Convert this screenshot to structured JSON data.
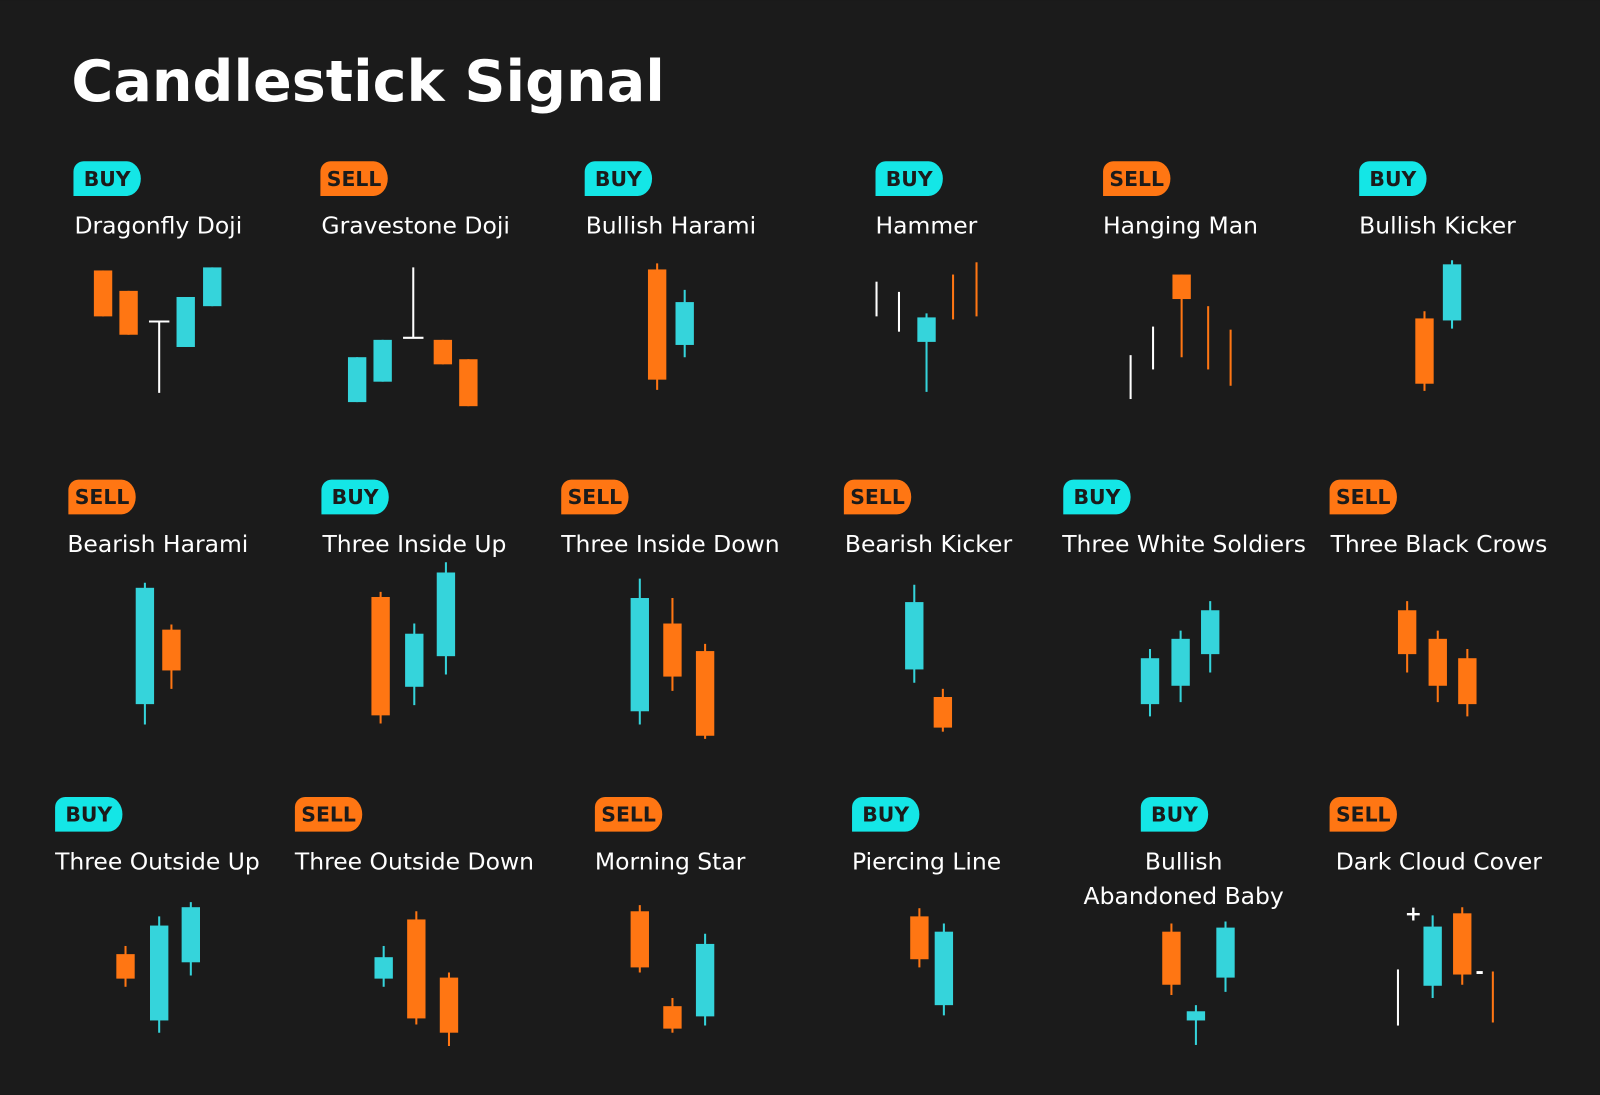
{
  "title": "Candlestick Signal",
  "cards": [
    {
      "signal": "BUY",
      "lines": [
        "Dragonfly Doji"
      ]
    },
    {
      "signal": "SELL",
      "lines": [
        "Gravestone Doji"
      ]
    },
    {
      "signal": "BUY",
      "lines": [
        "Bullish Harami"
      ]
    },
    {
      "signal": "BUY",
      "lines": [
        "Hammer"
      ]
    },
    {
      "signal": "SELL",
      "lines": [
        "Hanging Man"
      ]
    },
    {
      "signal": "BUY",
      "lines": [
        "Bullish Kicker"
      ]
    },
    {
      "signal": "SELL",
      "lines": [
        "Bearish Harami"
      ]
    },
    {
      "signal": "BUY",
      "lines": [
        "Three Inside Up"
      ]
    },
    {
      "signal": "SELL",
      "lines": [
        "Three Inside Down"
      ]
    },
    {
      "signal": "SELL",
      "lines": [
        "Bearish Kicker"
      ]
    },
    {
      "signal": "BUY",
      "lines": [
        "Three White Soldiers"
      ]
    },
    {
      "signal": "SELL",
      "lines": [
        "Three Black Crows"
      ]
    },
    {
      "signal": "BUY",
      "lines": [
        "Three Outside Up"
      ]
    },
    {
      "signal": "SELL",
      "lines": [
        "Three Outside Down"
      ]
    },
    {
      "signal": "SELL",
      "lines": [
        "Morning Star"
      ]
    },
    {
      "signal": "BUY",
      "lines": [
        "Piercing Line"
      ]
    },
    {
      "signal": "BUY",
      "lines": [
        "Bullish",
        "Abandoned Baby"
      ]
    },
    {
      "signal": "SELL",
      "lines": [
        "Dark Cloud Cover"
      ],
      "annotations": [
        "+",
        "-"
      ]
    }
  ]
}
